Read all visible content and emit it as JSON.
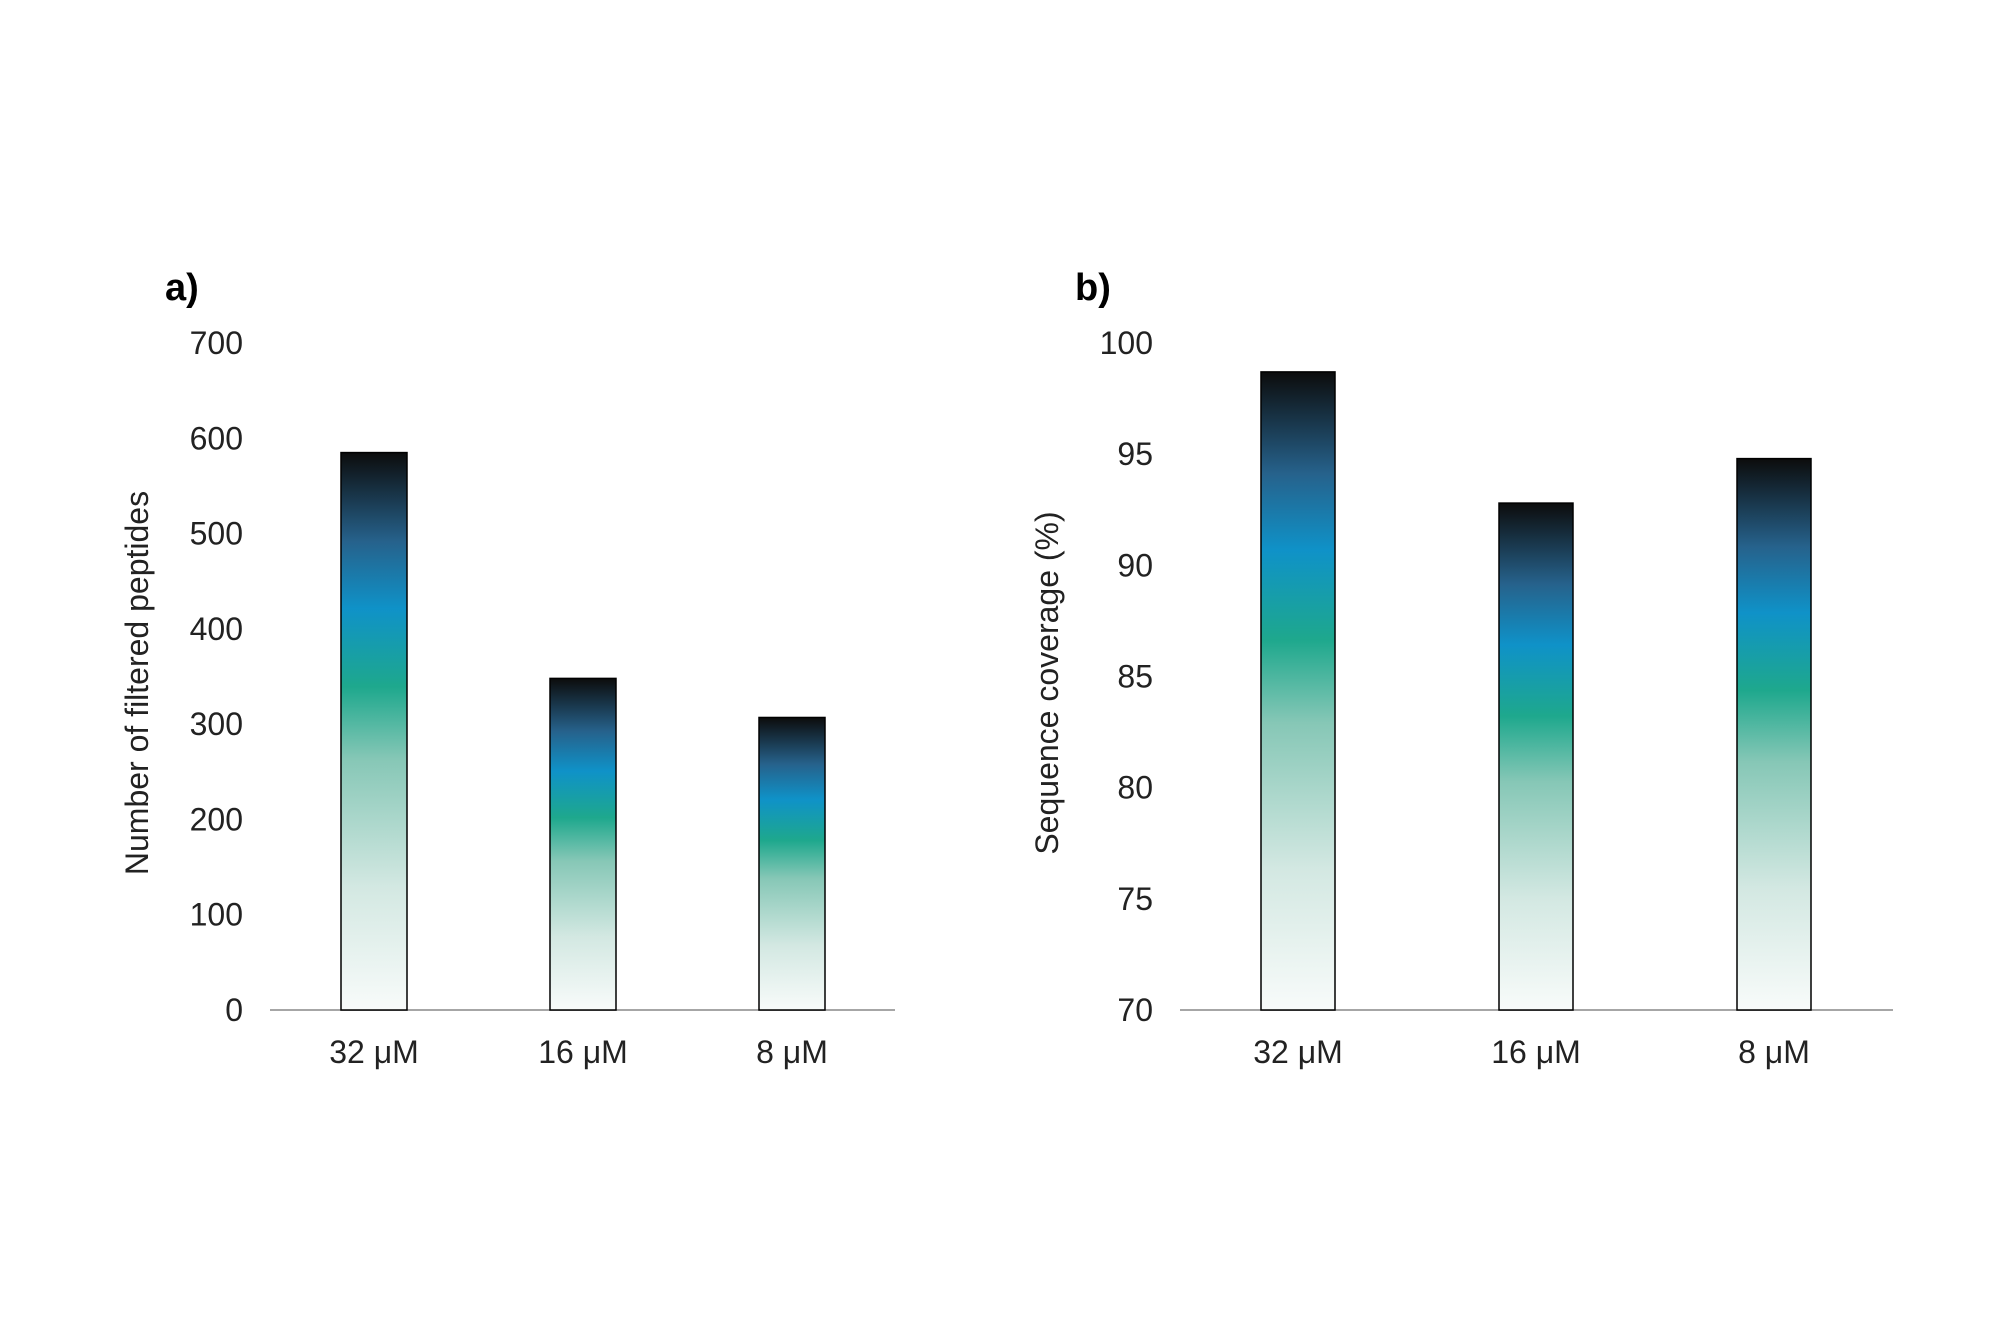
{
  "chart_data": [
    {
      "type": "bar",
      "panel_label": "a)",
      "ylabel": "Number of filtered peptides",
      "xlabel": "",
      "categories": [
        "32 μM",
        "16 μM",
        "8 μM"
      ],
      "values": [
        585,
        348,
        307
      ],
      "ylim": [
        0,
        700
      ],
      "yticks": [
        "0",
        "100",
        "200",
        "300",
        "400",
        "500",
        "600",
        "700"
      ],
      "grid": false,
      "legend": "none"
    },
    {
      "type": "bar",
      "panel_label": "b)",
      "ylabel": "Sequence coverage (%)",
      "xlabel": "",
      "categories": [
        "32 μM",
        "16 μM",
        "8 μM"
      ],
      "values": [
        98.7,
        92.8,
        94.8
      ],
      "ylim": [
        70,
        100
      ],
      "yticks": [
        "70",
        "75",
        "80",
        "85",
        "90",
        "95",
        "100"
      ],
      "grid": false,
      "legend": "none"
    }
  ],
  "colors": {
    "gradient": [
      "#f7fbfa",
      "#cfe6e0",
      "#7cc3b2",
      "#18a88c",
      "#1590c8",
      "#236a9a",
      "#111111"
    ],
    "baseline": "#a6a6a6"
  }
}
